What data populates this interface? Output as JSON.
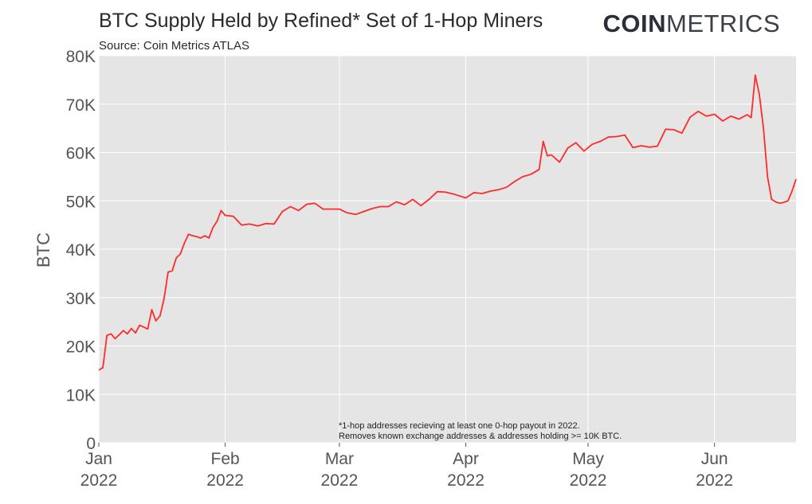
{
  "chart_data": {
    "type": "line",
    "title": "BTC Supply Held by Refined* Set of 1-Hop Miners",
    "subtitle": "Source: Coin Metrics ATLAS",
    "brand": {
      "bold": "COIN",
      "light": "METRICS"
    },
    "ylabel": "BTC",
    "xlabel": "",
    "ylim": [
      0,
      80000
    ],
    "yticks": [
      {
        "value": 0,
        "label": "0"
      },
      {
        "value": 10000,
        "label": "10K"
      },
      {
        "value": 20000,
        "label": "20K"
      },
      {
        "value": 30000,
        "label": "30K"
      },
      {
        "value": 40000,
        "label": "40K"
      },
      {
        "value": 50000,
        "label": "50K"
      },
      {
        "value": 60000,
        "label": "60K"
      },
      {
        "value": 70000,
        "label": "70K"
      },
      {
        "value": 80000,
        "label": "80K"
      }
    ],
    "xlim": [
      "2022-01-01",
      "2022-06-21"
    ],
    "xticks": [
      {
        "date": "2022-01-01",
        "month": "Jan",
        "year": "2022"
      },
      {
        "date": "2022-02-01",
        "month": "Feb",
        "year": "2022"
      },
      {
        "date": "2022-03-01",
        "month": "Mar",
        "year": "2022"
      },
      {
        "date": "2022-04-01",
        "month": "Apr",
        "year": "2022"
      },
      {
        "date": "2022-05-01",
        "month": "May",
        "year": "2022"
      },
      {
        "date": "2022-06-01",
        "month": "Jun",
        "year": "2022"
      }
    ],
    "grid": true,
    "line_color": "#ff2a2a",
    "background_color": "#e5e5e5",
    "annotation": [
      "*1-hop addresses recieving at least one 0-hop payout in 2022.",
      "Removes known exchange addresses & addresses holding >= 10K BTC."
    ],
    "series": [
      {
        "x": [
          "2022-01-01",
          "2022-01-02",
          "2022-01-03",
          "2022-01-04",
          "2022-01-05",
          "2022-01-06",
          "2022-01-07",
          "2022-01-08",
          "2022-01-09",
          "2022-01-10",
          "2022-01-11",
          "2022-01-12",
          "2022-01-13",
          "2022-01-14",
          "2022-01-15",
          "2022-01-16",
          "2022-01-17",
          "2022-01-18",
          "2022-01-19",
          "2022-01-20",
          "2022-01-21",
          "2022-01-22",
          "2022-01-23",
          "2022-01-24",
          "2022-01-25",
          "2022-01-26",
          "2022-01-27",
          "2022-01-28",
          "2022-01-29",
          "2022-01-30",
          "2022-01-31",
          "2022-02-01",
          "2022-02-03",
          "2022-02-05",
          "2022-02-07",
          "2022-02-09",
          "2022-02-11",
          "2022-02-13",
          "2022-02-15",
          "2022-02-17",
          "2022-02-19",
          "2022-02-21",
          "2022-02-23",
          "2022-02-25",
          "2022-03-01",
          "2022-03-03",
          "2022-03-05",
          "2022-03-07",
          "2022-03-09",
          "2022-03-11",
          "2022-03-13",
          "2022-03-15",
          "2022-03-17",
          "2022-03-19",
          "2022-03-21",
          "2022-03-23",
          "2022-03-25",
          "2022-03-27",
          "2022-03-29",
          "2022-04-01",
          "2022-04-03",
          "2022-04-05",
          "2022-04-07",
          "2022-04-09",
          "2022-04-11",
          "2022-04-13",
          "2022-04-15",
          "2022-04-17",
          "2022-04-19",
          "2022-04-20",
          "2022-04-21",
          "2022-04-22",
          "2022-04-24",
          "2022-04-26",
          "2022-04-28",
          "2022-04-30",
          "2022-05-02",
          "2022-05-04",
          "2022-05-06",
          "2022-05-08",
          "2022-05-10",
          "2022-05-12",
          "2022-05-14",
          "2022-05-16",
          "2022-05-18",
          "2022-05-20",
          "2022-05-22",
          "2022-05-24",
          "2022-05-26",
          "2022-05-28",
          "2022-05-30",
          "2022-06-01",
          "2022-06-03",
          "2022-06-05",
          "2022-06-07",
          "2022-06-09",
          "2022-06-10",
          "2022-06-11",
          "2022-06-12",
          "2022-06-13",
          "2022-06-14",
          "2022-06-15",
          "2022-06-16",
          "2022-06-17",
          "2022-06-18",
          "2022-06-19",
          "2022-06-20",
          "2022-06-21"
        ],
        "y": [
          15000,
          15500,
          22200,
          22500,
          21500,
          22300,
          23200,
          22500,
          23600,
          22700,
          24300,
          23900,
          23500,
          27500,
          25200,
          26200,
          29800,
          35300,
          35500,
          38200,
          39000,
          41300,
          43100,
          42800,
          42600,
          42300,
          42800,
          42300,
          44500,
          45800,
          48000,
          47000,
          46800,
          45000,
          45200,
          44800,
          45300,
          45200,
          47800,
          48800,
          48000,
          49300,
          49500,
          48300,
          48300,
          47500,
          47200,
          47800,
          48400,
          48800,
          48800,
          49800,
          49200,
          50300,
          49000,
          50300,
          51900,
          51800,
          51400,
          50600,
          51700,
          51500,
          52000,
          52300,
          52800,
          54000,
          55000,
          55500,
          56500,
          62300,
          59300,
          59500,
          58000,
          60900,
          62000,
          60300,
          61700,
          62300,
          63200,
          63300,
          63600,
          61000,
          61400,
          61100,
          61300,
          64800,
          64700,
          64000,
          67300,
          68500,
          67500,
          67900,
          66500,
          67500,
          66900,
          67800,
          67200,
          76000,
          72000,
          65000,
          55000,
          50300,
          49800,
          49500,
          49700,
          50000,
          52000,
          54500
        ]
      }
    ]
  }
}
